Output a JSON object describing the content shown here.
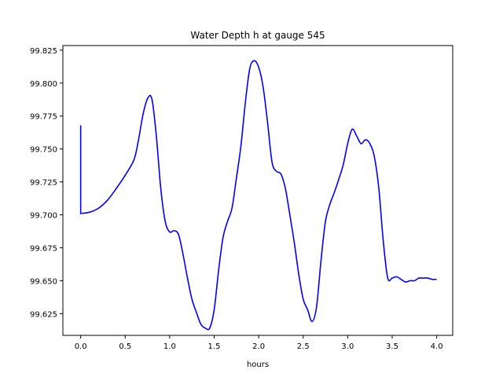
{
  "chart_data": {
    "type": "line",
    "title": "Water Depth h at gauge 545",
    "xlabel": "hours",
    "ylabel": "",
    "xlim": [
      -0.2,
      4.18
    ],
    "ylim": [
      99.6085,
      99.8285
    ],
    "xticks": [
      0.0,
      0.5,
      1.0,
      1.5,
      2.0,
      2.5,
      3.0,
      3.5,
      4.0
    ],
    "xtick_labels": [
      "0.0",
      "0.5",
      "1.0",
      "1.5",
      "2.0",
      "2.5",
      "3.0",
      "3.5",
      "4.0"
    ],
    "yticks": [
      99.625,
      99.65,
      99.675,
      99.7,
      99.725,
      99.75,
      99.775,
      99.8,
      99.825
    ],
    "ytick_labels": [
      "99.625",
      "99.650",
      "99.675",
      "99.700",
      "99.725",
      "99.750",
      "99.775",
      "99.800",
      "99.825"
    ],
    "grid": false,
    "series": [
      {
        "color": "#0000ff",
        "x": [
          0.0,
          0.0,
          0.1,
          0.2,
          0.3,
          0.4,
          0.5,
          0.6,
          0.65,
          0.7,
          0.75,
          0.8,
          0.85,
          0.9,
          0.95,
          1.0,
          1.05,
          1.1,
          1.15,
          1.2,
          1.25,
          1.3,
          1.35,
          1.4,
          1.45,
          1.5,
          1.55,
          1.6,
          1.65,
          1.7,
          1.75,
          1.8,
          1.85,
          1.9,
          1.95,
          2.0,
          2.05,
          2.1,
          2.15,
          2.2,
          2.25,
          2.3,
          2.35,
          2.4,
          2.45,
          2.5,
          2.55,
          2.6,
          2.65,
          2.7,
          2.75,
          2.8,
          2.85,
          2.9,
          2.95,
          3.0,
          3.05,
          3.1,
          3.15,
          3.2,
          3.25,
          3.3,
          3.35,
          3.4,
          3.45,
          3.5,
          3.55,
          3.6,
          3.65,
          3.7,
          3.75,
          3.8,
          3.85,
          3.9,
          3.95,
          4.0
        ],
        "y": [
          99.768,
          99.701,
          99.702,
          99.705,
          99.711,
          99.72,
          99.73,
          99.742,
          99.757,
          99.776,
          99.788,
          99.788,
          99.76,
          99.72,
          99.695,
          99.687,
          99.688,
          99.685,
          99.67,
          99.652,
          99.636,
          99.626,
          99.617,
          99.614,
          99.614,
          99.628,
          99.658,
          99.683,
          99.695,
          99.705,
          99.728,
          99.752,
          99.785,
          99.811,
          99.817,
          99.812,
          99.797,
          99.77,
          99.74,
          99.733,
          99.731,
          99.72,
          99.7,
          99.679,
          99.655,
          99.636,
          99.628,
          99.619,
          99.63,
          99.665,
          99.695,
          99.708,
          99.717,
          99.727,
          99.738,
          99.754,
          99.765,
          99.76,
          99.754,
          99.757,
          99.754,
          99.744,
          99.72,
          99.68,
          99.652,
          99.652,
          99.653,
          99.651,
          99.649,
          99.65,
          99.65,
          99.652,
          99.652,
          99.652,
          99.651,
          99.651
        ]
      }
    ]
  }
}
